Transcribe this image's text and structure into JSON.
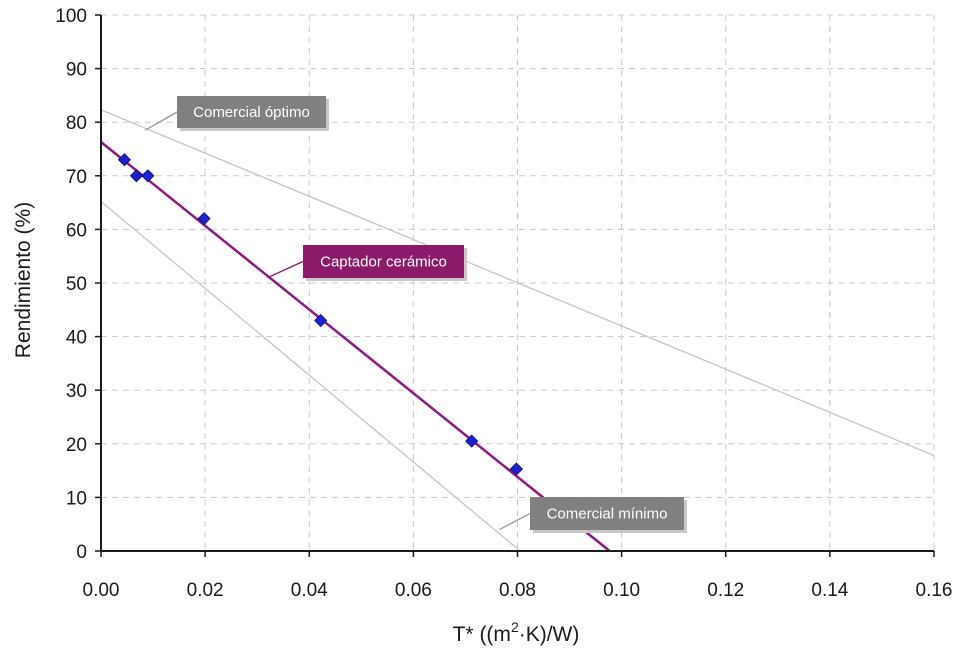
{
  "chart_data": {
    "type": "scatter",
    "title": "",
    "xlabel": "T* ((m²·K)/W)",
    "xlabel_parts": {
      "prefix": "T* ((m",
      "sup": "2",
      "suffix": "·K)/W)"
    },
    "ylabel": "Rendimiento (%)",
    "xlim": [
      0,
      0.16
    ],
    "ylim": [
      0,
      100
    ],
    "x_ticks": [
      "0.00",
      "0.02",
      "0.04",
      "0.06",
      "0.08",
      "0.10",
      "0.12",
      "0.14",
      "0.16"
    ],
    "y_ticks": [
      "0",
      "10",
      "20",
      "30",
      "40",
      "50",
      "60",
      "70",
      "80",
      "90",
      "100"
    ],
    "grid": true,
    "legend": "none",
    "series": [
      {
        "name": "Captador cerámico",
        "kind": "points",
        "color": "#1f1fd6",
        "points": [
          [
            0.0045,
            73
          ],
          [
            0.0068,
            70
          ],
          [
            0.009,
            70
          ],
          [
            0.0198,
            62
          ],
          [
            0.0422,
            43
          ],
          [
            0.0712,
            20.5
          ],
          [
            0.0798,
            15.3
          ]
        ]
      },
      {
        "name": "Captador cerámico",
        "kind": "line",
        "color": "#8b1a80",
        "points": [
          [
            0,
            76.3
          ],
          [
            0.0977,
            0
          ]
        ]
      },
      {
        "name": "Comercial óptimo",
        "kind": "line",
        "color": "#c4c4c4",
        "points": [
          [
            0,
            82.3
          ],
          [
            0.16,
            17.8
          ]
        ]
      },
      {
        "name": "Comercial mínimo",
        "kind": "line",
        "color": "#c4c4c4",
        "points": [
          [
            0,
            65.2
          ],
          [
            0.0805,
            0
          ]
        ]
      }
    ],
    "annotations": [
      {
        "text": "Comercial óptimo",
        "bg": "#808080",
        "leader_to": [
          0.0085,
          78.5
        ]
      },
      {
        "text": "Captador cerámico",
        "bg": "#8b1a6b",
        "leader_to": [
          0.032,
          51
        ]
      },
      {
        "text": "Comercial mínimo",
        "bg": "#808080",
        "leader_to": [
          0.0765,
          4
        ]
      }
    ]
  }
}
